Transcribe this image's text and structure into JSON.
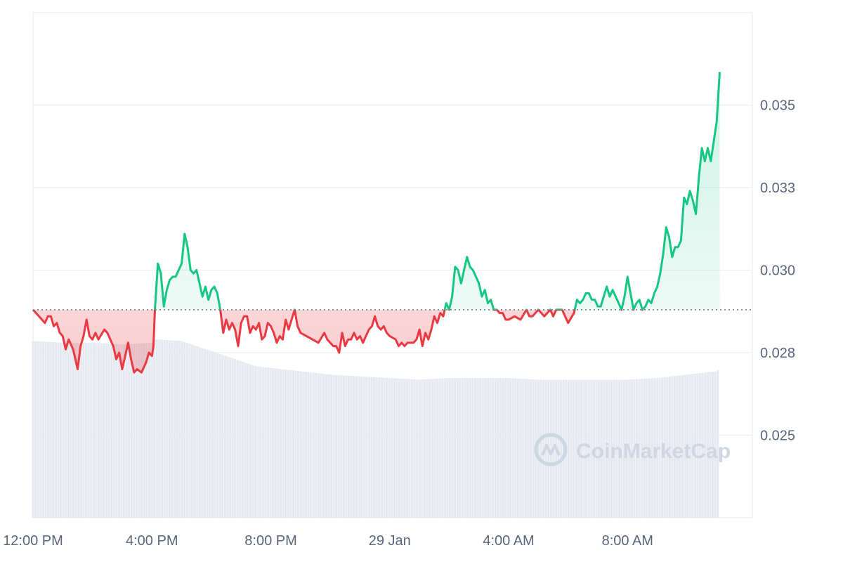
{
  "chart_data": {
    "type": "area",
    "baseline": 0.0288,
    "ylim": [
      0.0225,
      0.0378
    ],
    "y_ticks": [
      {
        "value": 0.025,
        "label": "0.025"
      },
      {
        "value": 0.0275,
        "label": "0.028"
      },
      {
        "value": 0.03,
        "label": "0.030"
      },
      {
        "value": 0.0325,
        "label": "0.033"
      },
      {
        "value": 0.035,
        "label": "0.035"
      }
    ],
    "x_ticks": [
      {
        "t": 0,
        "label": "12:00 PM"
      },
      {
        "t": 4,
        "label": "4:00 PM"
      },
      {
        "t": 8,
        "label": "8:00 PM"
      },
      {
        "t": 12,
        "label": "29 Jan"
      },
      {
        "t": 16,
        "label": "4:00 AM"
      },
      {
        "t": 20,
        "label": "8:00 AM"
      }
    ],
    "xlim": [
      0,
      24.2
    ],
    "colors": {
      "up": "#16c784",
      "down": "#ea3943",
      "grid": "#eff2f5",
      "baseline": "#58667e",
      "volume": "#e6e9ef"
    },
    "price": [
      [
        0.0,
        0.0288
      ],
      [
        0.2,
        0.0286
      ],
      [
        0.4,
        0.0284
      ],
      [
        0.5,
        0.0286
      ],
      [
        0.6,
        0.0286
      ],
      [
        0.7,
        0.0283
      ],
      [
        0.8,
        0.0284
      ],
      [
        0.9,
        0.0281
      ],
      [
        1.0,
        0.028
      ],
      [
        1.1,
        0.0276
      ],
      [
        1.2,
        0.0279
      ],
      [
        1.35,
        0.0276
      ],
      [
        1.45,
        0.0272
      ],
      [
        1.5,
        0.027
      ],
      [
        1.6,
        0.0277
      ],
      [
        1.7,
        0.028
      ],
      [
        1.8,
        0.0285
      ],
      [
        1.9,
        0.028
      ],
      [
        2.0,
        0.0279
      ],
      [
        2.1,
        0.0281
      ],
      [
        2.2,
        0.0279
      ],
      [
        2.4,
        0.0282
      ],
      [
        2.5,
        0.0281
      ],
      [
        2.6,
        0.0279
      ],
      [
        2.7,
        0.0277
      ],
      [
        2.8,
        0.0273
      ],
      [
        2.9,
        0.0275
      ],
      [
        3.0,
        0.027
      ],
      [
        3.1,
        0.0274
      ],
      [
        3.2,
        0.0278
      ],
      [
        3.3,
        0.0273
      ],
      [
        3.4,
        0.0269
      ],
      [
        3.5,
        0.027
      ],
      [
        3.65,
        0.0269
      ],
      [
        3.8,
        0.0272
      ],
      [
        3.9,
        0.0275
      ],
      [
        4.0,
        0.0274
      ],
      [
        4.05,
        0.0277
      ],
      [
        4.1,
        0.0288
      ],
      [
        4.15,
        0.0295
      ],
      [
        4.2,
        0.0302
      ],
      [
        4.3,
        0.0299
      ],
      [
        4.4,
        0.0289
      ],
      [
        4.5,
        0.0294
      ],
      [
        4.6,
        0.0297
      ],
      [
        4.7,
        0.0298
      ],
      [
        4.8,
        0.0298
      ],
      [
        4.9,
        0.03
      ],
      [
        5.0,
        0.0302
      ],
      [
        5.1,
        0.0311
      ],
      [
        5.2,
        0.0307
      ],
      [
        5.3,
        0.03
      ],
      [
        5.4,
        0.0299
      ],
      [
        5.5,
        0.03
      ],
      [
        5.6,
        0.0296
      ],
      [
        5.7,
        0.0292
      ],
      [
        5.8,
        0.0295
      ],
      [
        5.9,
        0.0291
      ],
      [
        6.0,
        0.0294
      ],
      [
        6.1,
        0.0295
      ],
      [
        6.2,
        0.0293
      ],
      [
        6.3,
        0.0288
      ],
      [
        6.4,
        0.0281
      ],
      [
        6.5,
        0.0285
      ],
      [
        6.6,
        0.0282
      ],
      [
        6.7,
        0.0284
      ],
      [
        6.8,
        0.0282
      ],
      [
        6.9,
        0.0277
      ],
      [
        7.0,
        0.0284
      ],
      [
        7.1,
        0.0286
      ],
      [
        7.2,
        0.0286
      ],
      [
        7.3,
        0.0281
      ],
      [
        7.4,
        0.0283
      ],
      [
        7.5,
        0.0282
      ],
      [
        7.6,
        0.0284
      ],
      [
        7.7,
        0.0279
      ],
      [
        7.8,
        0.028
      ],
      [
        7.9,
        0.0284
      ],
      [
        8.0,
        0.0283
      ],
      [
        8.1,
        0.0281
      ],
      [
        8.2,
        0.0278
      ],
      [
        8.3,
        0.028
      ],
      [
        8.4,
        0.0279
      ],
      [
        8.5,
        0.0285
      ],
      [
        8.6,
        0.0282
      ],
      [
        8.7,
        0.0285
      ],
      [
        8.8,
        0.0288
      ],
      [
        8.9,
        0.0283
      ],
      [
        9.0,
        0.0281
      ],
      [
        9.2,
        0.028
      ],
      [
        9.4,
        0.0279
      ],
      [
        9.6,
        0.0278
      ],
      [
        9.8,
        0.0281
      ],
      [
        9.9,
        0.0279
      ],
      [
        10.0,
        0.0278
      ],
      [
        10.1,
        0.0277
      ],
      [
        10.2,
        0.0277
      ],
      [
        10.3,
        0.0275
      ],
      [
        10.4,
        0.0281
      ],
      [
        10.5,
        0.0277
      ],
      [
        10.6,
        0.0279
      ],
      [
        10.7,
        0.0279
      ],
      [
        10.8,
        0.0281
      ],
      [
        10.9,
        0.0279
      ],
      [
        11.0,
        0.028
      ],
      [
        11.1,
        0.0278
      ],
      [
        11.2,
        0.028
      ],
      [
        11.3,
        0.0282
      ],
      [
        11.4,
        0.0283
      ],
      [
        11.5,
        0.0286
      ],
      [
        11.6,
        0.0283
      ],
      [
        11.7,
        0.0282
      ],
      [
        11.8,
        0.0283
      ],
      [
        11.9,
        0.0281
      ],
      [
        12.0,
        0.028
      ],
      [
        12.2,
        0.0279
      ],
      [
        12.3,
        0.0277
      ],
      [
        12.4,
        0.0278
      ],
      [
        12.5,
        0.0277
      ],
      [
        12.6,
        0.0278
      ],
      [
        12.7,
        0.0278
      ],
      [
        12.8,
        0.0278
      ],
      [
        12.9,
        0.0279
      ],
      [
        13.0,
        0.0282
      ],
      [
        13.1,
        0.0277
      ],
      [
        13.2,
        0.0281
      ],
      [
        13.3,
        0.0279
      ],
      [
        13.4,
        0.0282
      ],
      [
        13.5,
        0.0286
      ],
      [
        13.6,
        0.0284
      ],
      [
        13.7,
        0.0287
      ],
      [
        13.8,
        0.0286
      ],
      [
        13.9,
        0.029
      ],
      [
        14.0,
        0.0288
      ],
      [
        14.1,
        0.0292
      ],
      [
        14.2,
        0.0301
      ],
      [
        14.3,
        0.03
      ],
      [
        14.4,
        0.0296
      ],
      [
        14.5,
        0.03
      ],
      [
        14.6,
        0.0304
      ],
      [
        14.7,
        0.0301
      ],
      [
        14.8,
        0.03
      ],
      [
        14.9,
        0.0298
      ],
      [
        15.0,
        0.0296
      ],
      [
        15.1,
        0.0292
      ],
      [
        15.2,
        0.0294
      ],
      [
        15.3,
        0.029
      ],
      [
        15.4,
        0.0291
      ],
      [
        15.5,
        0.0288
      ],
      [
        15.6,
        0.0288
      ],
      [
        15.7,
        0.0287
      ],
      [
        15.8,
        0.0287
      ],
      [
        15.9,
        0.0285
      ],
      [
        16.0,
        0.0285
      ],
      [
        16.2,
        0.0286
      ],
      [
        16.4,
        0.0285
      ],
      [
        16.6,
        0.0288
      ],
      [
        16.7,
        0.0286
      ],
      [
        16.8,
        0.0286
      ],
      [
        17.0,
        0.0288
      ],
      [
        17.2,
        0.0286
      ],
      [
        17.4,
        0.0288
      ],
      [
        17.5,
        0.0286
      ],
      [
        17.6,
        0.0288
      ],
      [
        17.7,
        0.0288
      ],
      [
        17.8,
        0.0288
      ],
      [
        18.0,
        0.0284
      ],
      [
        18.2,
        0.0287
      ],
      [
        18.3,
        0.0291
      ],
      [
        18.4,
        0.029
      ],
      [
        18.5,
        0.0291
      ],
      [
        18.6,
        0.0293
      ],
      [
        18.7,
        0.0293
      ],
      [
        18.8,
        0.0291
      ],
      [
        18.9,
        0.0291
      ],
      [
        19.0,
        0.0289
      ],
      [
        19.1,
        0.0289
      ],
      [
        19.2,
        0.0292
      ],
      [
        19.3,
        0.0295
      ],
      [
        19.4,
        0.0292
      ],
      [
        19.5,
        0.0294
      ],
      [
        19.6,
        0.0292
      ],
      [
        19.7,
        0.029
      ],
      [
        19.8,
        0.0288
      ],
      [
        19.9,
        0.0292
      ],
      [
        20.0,
        0.0298
      ],
      [
        20.1,
        0.0293
      ],
      [
        20.2,
        0.0288
      ],
      [
        20.3,
        0.029
      ],
      [
        20.4,
        0.0291
      ],
      [
        20.5,
        0.0288
      ],
      [
        20.6,
        0.0289
      ],
      [
        20.7,
        0.0291
      ],
      [
        20.8,
        0.029
      ],
      [
        20.9,
        0.0293
      ],
      [
        21.0,
        0.0295
      ],
      [
        21.1,
        0.0299
      ],
      [
        21.2,
        0.0305
      ],
      [
        21.3,
        0.0313
      ],
      [
        21.4,
        0.031
      ],
      [
        21.5,
        0.0304
      ],
      [
        21.6,
        0.0307
      ],
      [
        21.7,
        0.0307
      ],
      [
        21.8,
        0.0309
      ],
      [
        21.9,
        0.0322
      ],
      [
        22.0,
        0.032
      ],
      [
        22.1,
        0.0324
      ],
      [
        22.2,
        0.0321
      ],
      [
        22.3,
        0.0317
      ],
      [
        22.4,
        0.0328
      ],
      [
        22.5,
        0.0337
      ],
      [
        22.6,
        0.0333
      ],
      [
        22.7,
        0.0337
      ],
      [
        22.8,
        0.0333
      ],
      [
        22.9,
        0.0339
      ],
      [
        23.0,
        0.0345
      ],
      [
        23.1,
        0.036
      ]
    ],
    "volume": [
      [
        0.0,
        0.105
      ],
      [
        1.0,
        0.104
      ],
      [
        2.0,
        0.104
      ],
      [
        3.0,
        0.103
      ],
      [
        4.0,
        0.104
      ],
      [
        4.1,
        0.106
      ],
      [
        5.0,
        0.105
      ],
      [
        6.0,
        0.099
      ],
      [
        7.0,
        0.093
      ],
      [
        7.5,
        0.09
      ],
      [
        8.0,
        0.089
      ],
      [
        9.0,
        0.087
      ],
      [
        10.0,
        0.085
      ],
      [
        11.0,
        0.084
      ],
      [
        12.0,
        0.083
      ],
      [
        13.0,
        0.082
      ],
      [
        14.0,
        0.083
      ],
      [
        15.0,
        0.083
      ],
      [
        16.0,
        0.083
      ],
      [
        17.0,
        0.082
      ],
      [
        18.0,
        0.082
      ],
      [
        19.0,
        0.082
      ],
      [
        20.0,
        0.082
      ],
      [
        21.0,
        0.083
      ],
      [
        22.0,
        0.085
      ],
      [
        22.5,
        0.086
      ],
      [
        23.0,
        0.087
      ],
      [
        23.1,
        0.089
      ]
    ],
    "volume_ylim": [
      0,
      0.3
    ]
  },
  "watermark": {
    "text": "CoinMarketCap",
    "icon": "coinmarketcap-logo-icon"
  }
}
